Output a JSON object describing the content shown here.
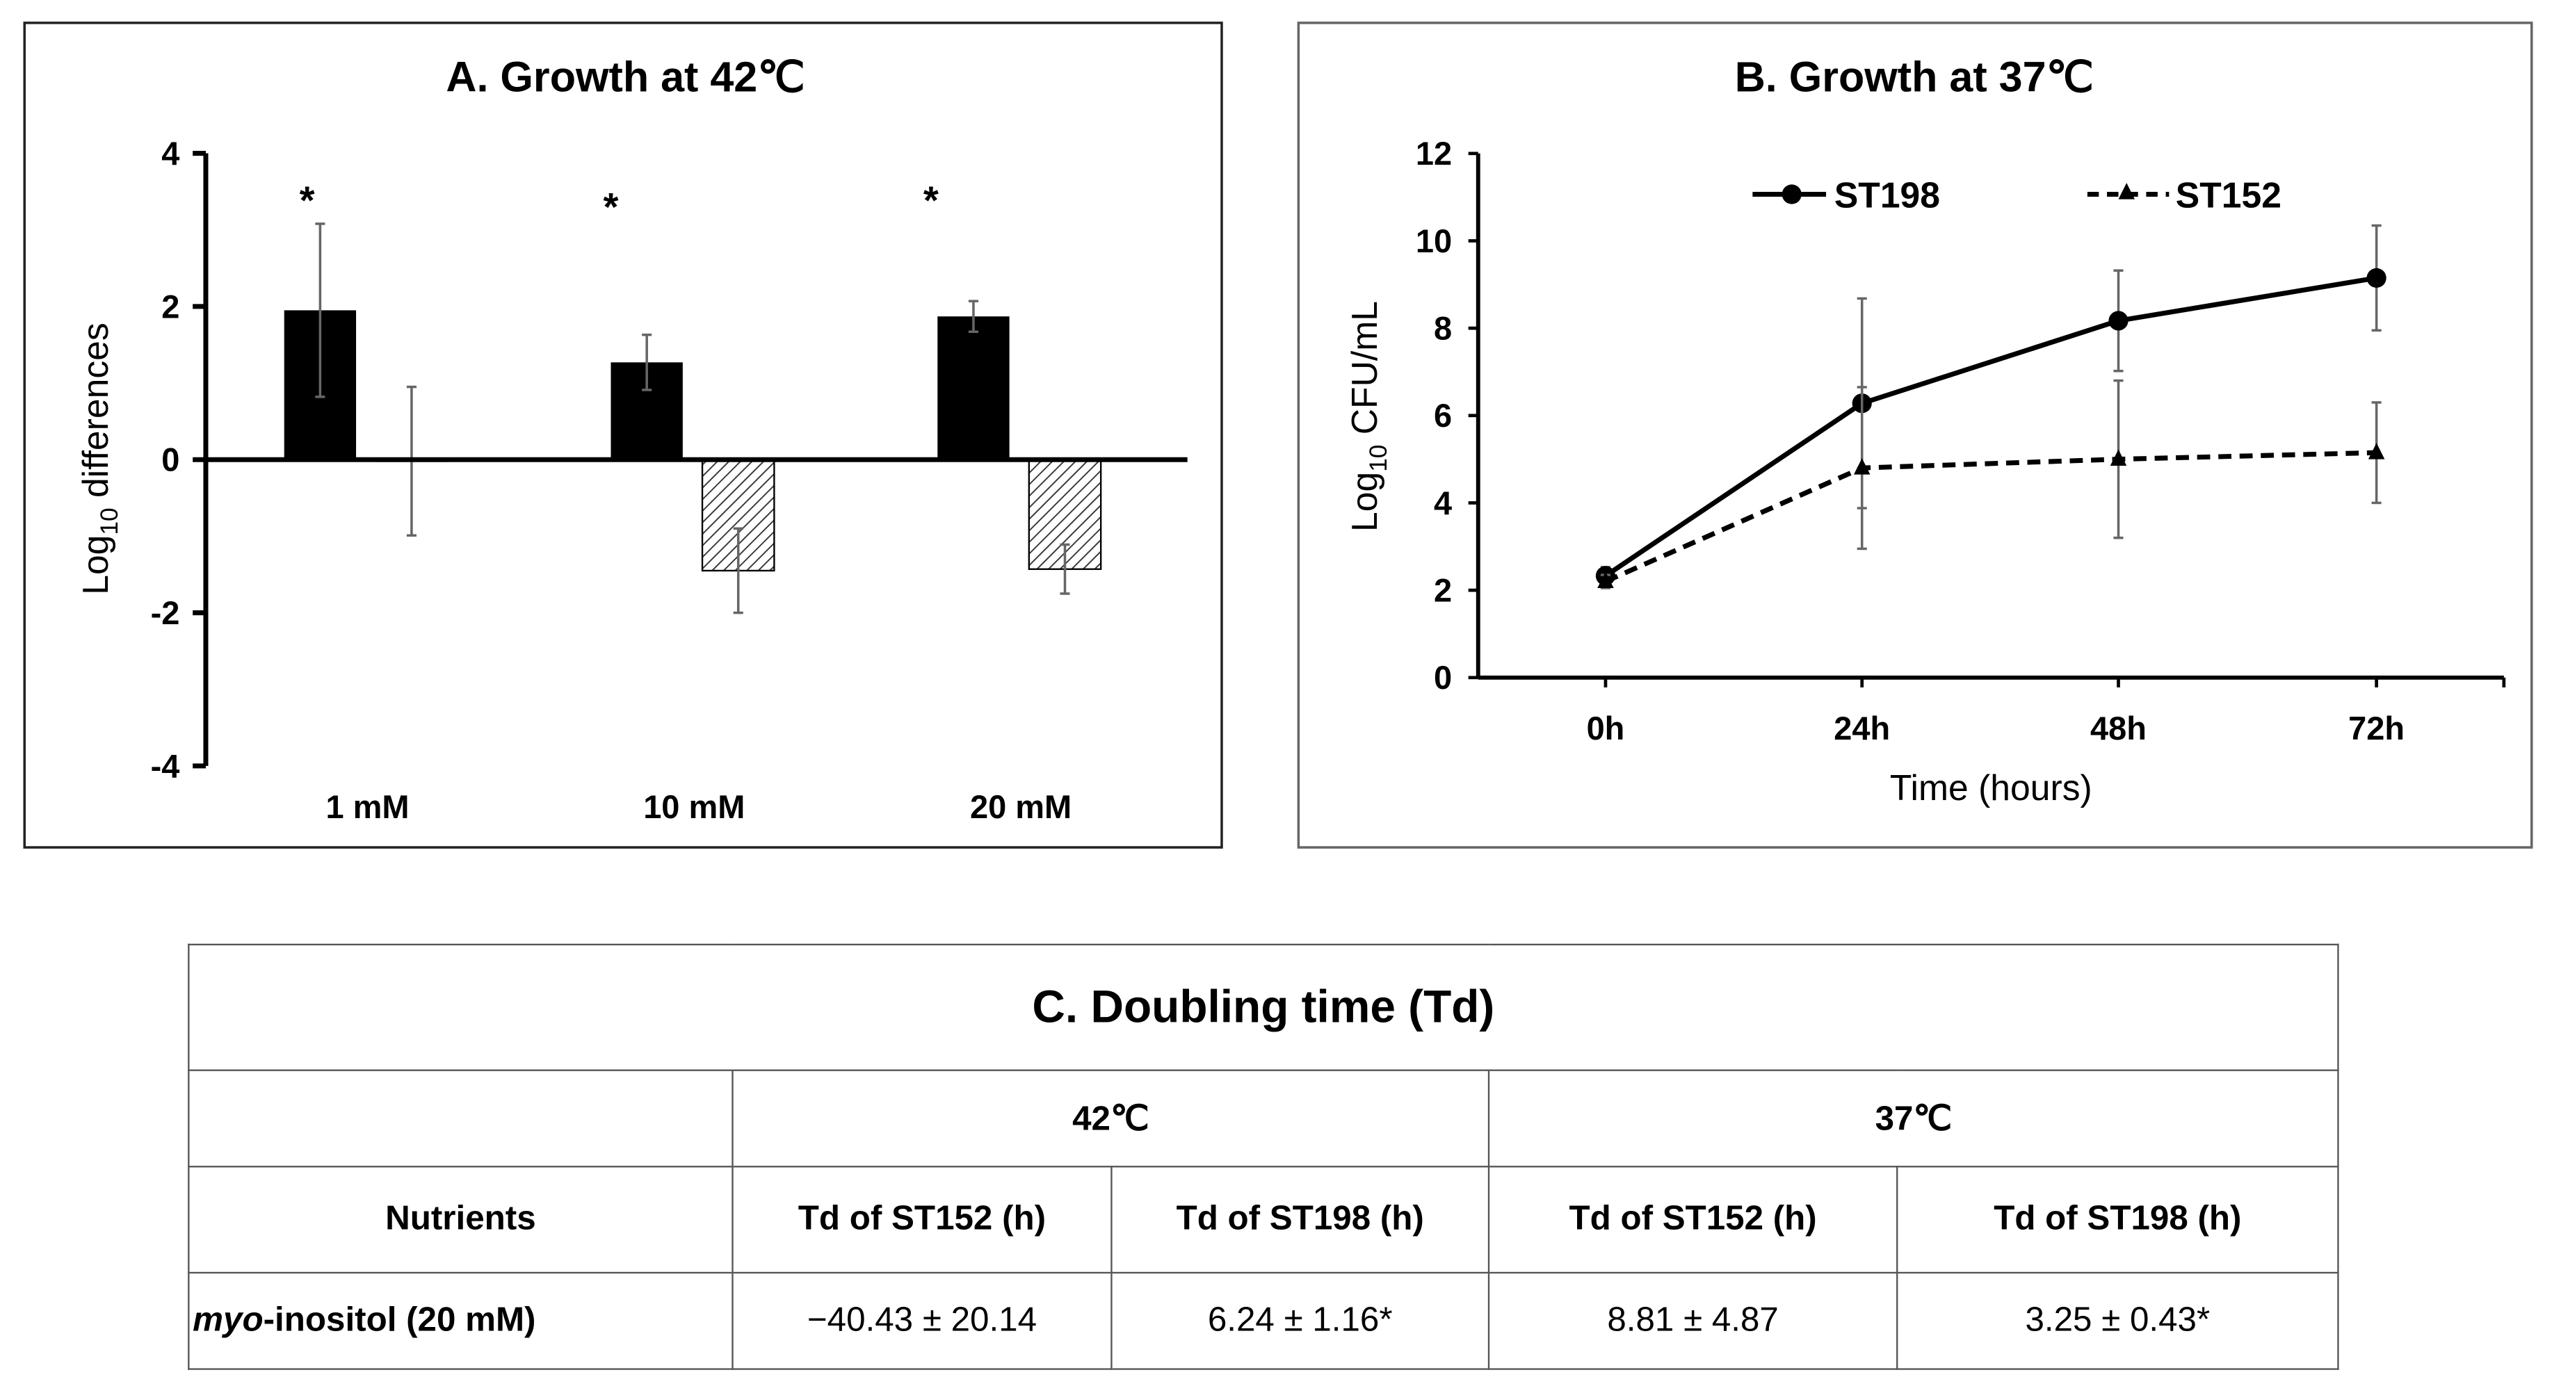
{
  "chart_data": [
    {
      "type": "bar",
      "title": "A. Growth at 42℃",
      "ylabel_main": "Log",
      "ylabel_sub": "10",
      "ylabel_rest": " differences",
      "ylim": [
        -4,
        4
      ],
      "yticks": [
        "4",
        "2",
        "0",
        "-2",
        "-4"
      ],
      "ytick_values": [
        4,
        2,
        0,
        -2,
        -4
      ],
      "categories": [
        "1 mM",
        "10 mM",
        "20 mM"
      ],
      "series": [
        {
          "name": "ST198",
          "fill": "solid-black",
          "values": [
            1.95,
            1.27,
            1.87
          ],
          "errors": [
            1.13,
            0.36,
            0.2
          ]
        },
        {
          "name": "ST152",
          "fill": "hatched",
          "values": [
            -0.02,
            -1.45,
            -1.43
          ],
          "errors": [
            0.97,
            0.55,
            0.32
          ]
        }
      ],
      "annotations": [
        "*",
        "*",
        "*"
      ]
    },
    {
      "type": "line",
      "title": "B. Growth at 37℃",
      "xlabel": "Time (hours)",
      "ylabel_main": "Log",
      "ylabel_sub": "10",
      "ylabel_rest": " CFU/mL",
      "ylim": [
        0,
        12
      ],
      "yticks": [
        "0",
        "2",
        "4",
        "6",
        "8",
        "10",
        "12"
      ],
      "ytick_values": [
        0,
        2,
        4,
        6,
        8,
        10,
        12
      ],
      "x": [
        "0h",
        "24h",
        "48h",
        "72h"
      ],
      "legend_position": "top",
      "series": [
        {
          "name": "ST198",
          "style": "solid-circle",
          "values": [
            2.33,
            6.28,
            8.17,
            9.15
          ],
          "errors": [
            0.2,
            2.4,
            1.15,
            1.2
          ]
        },
        {
          "name": "ST152",
          "style": "dashed-triangle",
          "values": [
            2.2,
            4.8,
            5.0,
            5.15
          ],
          "errors": [
            0.15,
            1.85,
            1.8,
            1.15
          ]
        }
      ]
    }
  ],
  "table": {
    "title": "C. Doubling time (Td)",
    "groups": [
      "42℃",
      "37℃"
    ],
    "headers": [
      "Nutrients",
      "Td of ST152 (h)",
      "Td of ST198 (h)",
      "Td of ST152 (h)",
      "Td of ST198 (h)"
    ],
    "row": {
      "nutrient_italic": "myo",
      "nutrient_rest": "-inositol (20 mM)",
      "values": [
        "−40.43 ± 20.14",
        "6.24 ± 1.16*",
        "8.81 ± 4.87",
        "3.25 ± 0.43*"
      ]
    }
  }
}
